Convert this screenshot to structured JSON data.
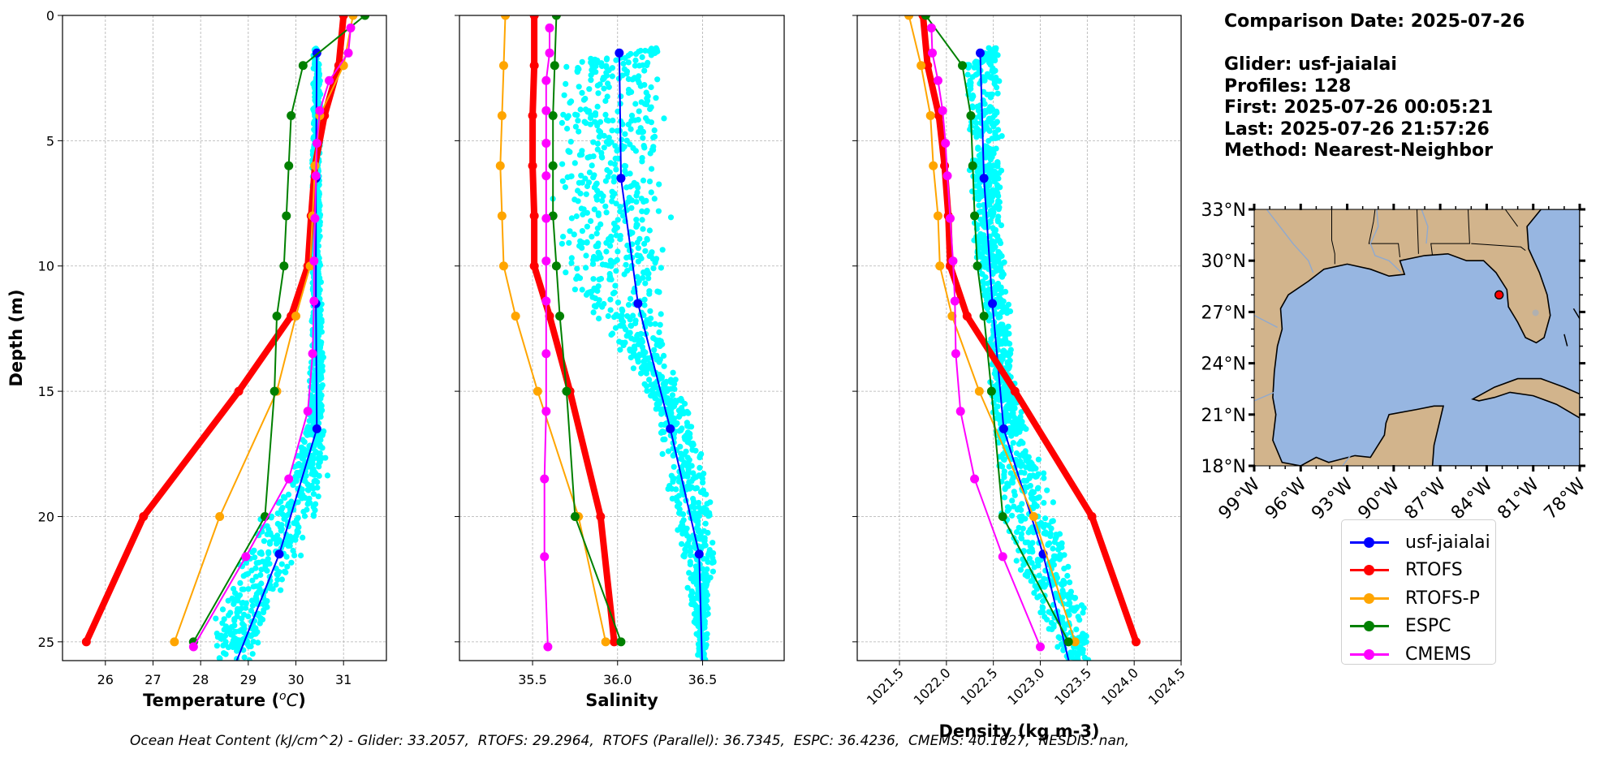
{
  "info": {
    "comparison_date": "Comparison Date: 2025-07-26",
    "glider": "Glider: usf-jaialai",
    "profiles": "Profiles: 128",
    "first": "First: 2025-07-26 00:05:21",
    "last": "Last: 2025-07-26 21:57:26",
    "method": "Method: Nearest-Neighbor"
  },
  "ohc_caption": "Ocean Heat Content (kJ/cm^2) - Glider: 33.2057,  RTOFS: 29.2964,  RTOFS (Parallel): 36.7345,  ESPC: 36.4236,  CMEMS: 40.1627,  NESDIS: nan,",
  "legend": [
    {
      "label": "usf-jaialai",
      "color": "#0000ff"
    },
    {
      "label": "RTOFS",
      "color": "#ff0000"
    },
    {
      "label": "RTOFS-P",
      "color": "#ffa500"
    },
    {
      "label": "ESPC",
      "color": "#008000"
    },
    {
      "label": "CMEMS",
      "color": "#ff00ff"
    }
  ],
  "chart_data": [
    {
      "type": "line",
      "name": "temperature",
      "xlabel": "Temperature (°C)",
      "ylabel": "Depth (m)",
      "xlim": [
        25.1,
        31.9
      ],
      "ylim": [
        25.75,
        0
      ],
      "xticks": [
        26,
        27,
        28,
        29,
        30,
        31
      ],
      "xtick_labels": [
        "26",
        "27",
        "28",
        "29",
        "30",
        "31"
      ],
      "yticks": [
        0,
        5,
        10,
        15,
        20,
        25
      ],
      "ytick_labels": [
        "0",
        "5",
        "10",
        "15",
        "20",
        "25"
      ],
      "grid": true,
      "scatter": {
        "name": "glider-raw",
        "color": "#00ffff",
        "profile": [
          [
            1.3,
            30.42,
            0.05
          ],
          [
            3,
            30.45,
            0.08
          ],
          [
            6,
            30.42,
            0.08
          ],
          [
            10,
            30.42,
            0.1
          ],
          [
            13,
            30.45,
            0.12
          ],
          [
            16,
            30.42,
            0.15
          ],
          [
            18,
            30.3,
            0.35
          ],
          [
            20,
            29.9,
            0.55
          ],
          [
            22,
            29.3,
            0.6
          ],
          [
            24,
            28.9,
            0.55
          ],
          [
            25.75,
            28.7,
            0.4
          ]
        ]
      },
      "series": [
        {
          "name": "usf-jaialai",
          "color": "#0000ff",
          "width": 2,
          "depth": [
            1.5,
            6.5,
            11.5,
            16.5,
            21.5,
            26.5
          ],
          "values": [
            30.44,
            30.42,
            30.42,
            30.44,
            29.65,
            28.6
          ]
        },
        {
          "name": "RTOFS",
          "color": "#ff0000",
          "width": 8,
          "depth": [
            0,
            2,
            4,
            6,
            8,
            10,
            12,
            15,
            20,
            25
          ],
          "values": [
            31.0,
            30.9,
            30.6,
            30.4,
            30.32,
            30.25,
            29.9,
            28.8,
            26.8,
            25.6
          ]
        },
        {
          "name": "RTOFS-P",
          "color": "#ffa500",
          "width": 2,
          "depth": [
            0,
            2,
            4,
            6,
            8,
            10,
            12,
            15,
            20,
            25
          ],
          "values": [
            31.2,
            31.0,
            30.5,
            30.4,
            30.35,
            30.3,
            30.0,
            29.6,
            28.4,
            27.45
          ]
        },
        {
          "name": "ESPC",
          "color": "#008000",
          "width": 2,
          "depth": [
            0,
            2,
            4,
            6,
            8,
            10,
            12,
            15,
            20,
            25
          ],
          "values": [
            31.45,
            30.15,
            29.9,
            29.85,
            29.8,
            29.75,
            29.6,
            29.55,
            29.35,
            27.85
          ]
        },
        {
          "name": "CMEMS",
          "color": "#ff00ff",
          "width": 2,
          "depth": [
            0.5,
            1.5,
            2.6,
            3.8,
            5.1,
            6.4,
            8.1,
            9.8,
            11.4,
            13.5,
            15.8,
            18.5,
            21.6,
            25.2
          ],
          "values": [
            31.15,
            31.1,
            30.7,
            30.5,
            30.44,
            30.42,
            30.4,
            30.38,
            30.38,
            30.35,
            30.25,
            29.85,
            28.95,
            27.85
          ]
        }
      ]
    },
    {
      "type": "line",
      "name": "salinity",
      "xlabel": "Salinity",
      "ylabel": "",
      "xlim": [
        35.07,
        36.98
      ],
      "ylim": [
        25.75,
        0
      ],
      "xticks": [
        35.5,
        36.0,
        36.5
      ],
      "xtick_labels": [
        "35.5",
        "36.0",
        "36.5"
      ],
      "yticks": [
        0,
        5,
        10,
        15,
        20,
        25
      ],
      "ytick_labels": [],
      "grid": true,
      "scatter": {
        "name": "glider-raw",
        "color": "#00ffff",
        "profile": [
          [
            1.3,
            36.23,
            0.02
          ],
          [
            2,
            35.95,
            0.3
          ],
          [
            6,
            35.95,
            0.3
          ],
          [
            10,
            35.97,
            0.28
          ],
          [
            12,
            36.05,
            0.22
          ],
          [
            14,
            36.2,
            0.1
          ],
          [
            16,
            36.33,
            0.1
          ],
          [
            18,
            36.4,
            0.12
          ],
          [
            20,
            36.45,
            0.12
          ],
          [
            22,
            36.48,
            0.08
          ],
          [
            25.75,
            36.5,
            0.02
          ]
        ]
      },
      "series": [
        {
          "name": "usf-jaialai",
          "color": "#0000ff",
          "width": 2,
          "depth": [
            1.5,
            6.5,
            11.5,
            16.5,
            21.5,
            26.5
          ],
          "values": [
            36.01,
            36.02,
            36.12,
            36.31,
            36.48,
            36.5
          ]
        },
        {
          "name": "RTOFS",
          "color": "#ff0000",
          "width": 8,
          "depth": [
            0,
            2,
            4,
            6,
            8,
            10,
            12,
            15,
            20,
            25
          ],
          "values": [
            35.51,
            35.51,
            35.5,
            35.5,
            35.51,
            35.51,
            35.6,
            35.72,
            35.9,
            35.98
          ]
        },
        {
          "name": "RTOFS-P",
          "color": "#ffa500",
          "width": 2,
          "depth": [
            0,
            2,
            4,
            6,
            8,
            10,
            12,
            15,
            20,
            25
          ],
          "values": [
            35.34,
            35.33,
            35.32,
            35.31,
            35.32,
            35.33,
            35.4,
            35.53,
            35.77,
            35.93
          ]
        },
        {
          "name": "ESPC",
          "color": "#008000",
          "width": 2,
          "depth": [
            0,
            2,
            4,
            6,
            8,
            10,
            12,
            15,
            20,
            25
          ],
          "values": [
            35.64,
            35.63,
            35.62,
            35.62,
            35.62,
            35.64,
            35.66,
            35.7,
            35.75,
            36.02
          ]
        },
        {
          "name": "CMEMS",
          "color": "#ff00ff",
          "width": 2,
          "depth": [
            0.5,
            1.5,
            2.6,
            3.8,
            5.1,
            6.4,
            8.1,
            9.8,
            11.4,
            13.5,
            15.8,
            18.5,
            21.6,
            25.2
          ],
          "values": [
            35.6,
            35.6,
            35.58,
            35.58,
            35.58,
            35.58,
            35.58,
            35.58,
            35.58,
            35.58,
            35.58,
            35.57,
            35.57,
            35.59
          ]
        }
      ]
    },
    {
      "type": "line",
      "name": "density",
      "xlabel": "Density (kg m-3)",
      "ylabel": "",
      "xlim": [
        1021.05,
        1024.5
      ],
      "ylim": [
        25.75,
        0
      ],
      "xticks": [
        1021.5,
        1022.0,
        1022.5,
        1023.0,
        1023.5,
        1024.0,
        1024.5
      ],
      "xtick_labels": [
        "1021.5",
        "1022.0",
        "1022.5",
        "1023.0",
        "1023.5",
        "1024.0",
        "1024.5"
      ],
      "yticks": [
        0,
        5,
        10,
        15,
        20,
        25
      ],
      "ytick_labels": [],
      "grid": true,
      "scatter": {
        "name": "glider-raw",
        "color": "#00ffff",
        "profile": [
          [
            1.3,
            1022.5,
            0.05
          ],
          [
            2,
            1022.38,
            0.18
          ],
          [
            6,
            1022.42,
            0.16
          ],
          [
            10,
            1022.46,
            0.16
          ],
          [
            12,
            1022.55,
            0.13
          ],
          [
            15,
            1022.6,
            0.12
          ],
          [
            17,
            1022.72,
            0.2
          ],
          [
            20,
            1022.9,
            0.3
          ],
          [
            22,
            1023.05,
            0.3
          ],
          [
            24,
            1023.25,
            0.25
          ],
          [
            25.75,
            1023.4,
            0.12
          ]
        ]
      },
      "series": [
        {
          "name": "usf-jaialai",
          "color": "#0000ff",
          "width": 2,
          "depth": [
            1.5,
            6.5,
            11.5,
            16.5,
            21.5,
            26.5
          ],
          "values": [
            1022.36,
            1022.4,
            1022.49,
            1022.61,
            1023.03,
            1023.35
          ]
        },
        {
          "name": "RTOFS",
          "color": "#ff0000",
          "width": 8,
          "depth": [
            0,
            2,
            4,
            6,
            8,
            10,
            12,
            15,
            20,
            25
          ],
          "values": [
            1021.75,
            1021.8,
            1021.92,
            1021.98,
            1022.02,
            1022.04,
            1022.22,
            1022.73,
            1023.55,
            1024.02
          ]
        },
        {
          "name": "RTOFS-P",
          "color": "#ffa500",
          "width": 2,
          "depth": [
            0,
            2,
            4,
            6,
            8,
            10,
            12,
            15,
            20,
            25
          ],
          "values": [
            1021.6,
            1021.73,
            1021.83,
            1021.86,
            1021.91,
            1021.93,
            1022.06,
            1022.35,
            1022.93,
            1023.37
          ]
        },
        {
          "name": "ESPC",
          "color": "#008000",
          "width": 2,
          "depth": [
            0,
            2,
            4,
            6,
            8,
            10,
            12,
            15,
            20,
            25
          ],
          "values": [
            1021.78,
            1022.17,
            1022.26,
            1022.28,
            1022.3,
            1022.33,
            1022.4,
            1022.48,
            1022.6,
            1023.3
          ]
        },
        {
          "name": "CMEMS",
          "color": "#ff00ff",
          "width": 2,
          "depth": [
            0.5,
            1.5,
            2.6,
            3.8,
            5.1,
            6.4,
            8.1,
            9.8,
            11.4,
            13.5,
            15.8,
            18.5,
            21.6,
            25.2
          ],
          "values": [
            1021.84,
            1021.85,
            1021.91,
            1021.96,
            1021.99,
            1022.01,
            1022.04,
            1022.07,
            1022.09,
            1022.1,
            1022.15,
            1022.3,
            1022.6,
            1023.0
          ]
        }
      ]
    }
  ],
  "map": {
    "lon_range": [
      -99,
      -78
    ],
    "lat_range": [
      18,
      33
    ],
    "lon_ticks": [
      -99,
      -96,
      -93,
      -90,
      -87,
      -84,
      -81,
      -78
    ],
    "lon_tick_labels": [
      "99°W",
      "96°W",
      "93°W",
      "90°W",
      "87°W",
      "84°W",
      "81°W",
      "78°W"
    ],
    "lat_ticks": [
      18,
      21,
      24,
      27,
      30,
      33
    ],
    "lat_tick_labels": [
      "18°N",
      "21°N",
      "24°N",
      "27°N",
      "30°N",
      "33°N"
    ],
    "land_color": "#d2b48c",
    "ocean_color": "#97b6e1",
    "glider_position": {
      "lon": -83.2,
      "lat": 28.0,
      "color": "#ff0000"
    }
  }
}
